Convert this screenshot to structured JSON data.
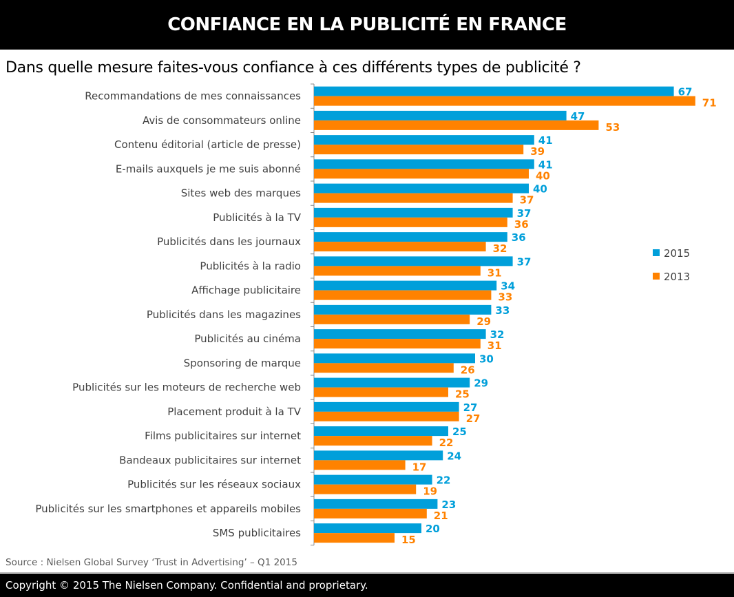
{
  "header": {
    "title": "CONFIANCE EN LA PUBLICITÉ EN FRANCE"
  },
  "chart_data": {
    "type": "bar",
    "orientation": "horizontal",
    "title": "Dans quelle mesure faites-vous confiance à ces différents types de publicité ?",
    "categories": [
      "Recommandations de mes connaissances",
      "Avis de consommateurs online",
      "Contenu éditorial (article de presse)",
      "E-mails auxquels je me suis abonné",
      "Sites web des marques",
      "Publicités à la TV",
      "Publicités dans les journaux",
      "Publicités à la radio",
      "Affichage publicitaire",
      "Publicités dans les magazines",
      "Publicités au cinéma",
      "Sponsoring de marque",
      "Publicités sur les moteurs de recherche web",
      "Placement produit à la TV",
      "Films publicitaires sur internet",
      "Bandeaux publicitaires sur internet",
      "Publicités sur les réseaux sociaux",
      "Publicités sur les smartphones et appareils mobiles",
      "SMS publicitaires"
    ],
    "series": [
      {
        "name": "2015",
        "color": "#009fda",
        "values": [
          67,
          47,
          41,
          41,
          40,
          37,
          36,
          37,
          34,
          33,
          32,
          30,
          29,
          27,
          25,
          24,
          22,
          23,
          20
        ]
      },
      {
        "name": "2013",
        "color": "#ff8200",
        "values": [
          71,
          53,
          39,
          40,
          37,
          36,
          32,
          31,
          33,
          29,
          31,
          26,
          25,
          27,
          22,
          17,
          19,
          21,
          15
        ]
      }
    ],
    "xlim": [
      0,
      75
    ],
    "grid": false,
    "legend_position": "right",
    "data_labels": true
  },
  "source": "Source : Nielsen Global Survey ‘Trust in Advertising’ – Q1 2015",
  "footer": "Copyright © 2015 The Nielsen Company. Confidential and proprietary."
}
